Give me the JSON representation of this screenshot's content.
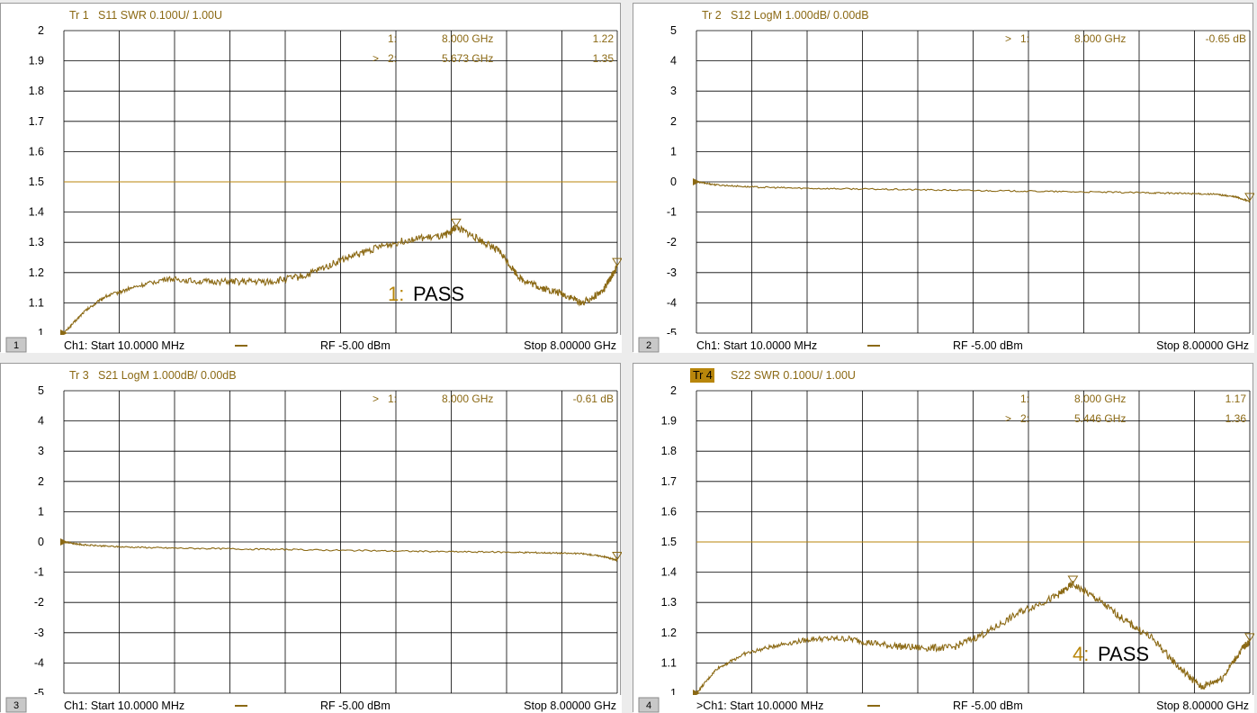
{
  "colors": {
    "trace": "#8B6914",
    "limit": "#B8860B",
    "active_tab": "#B8860B",
    "grid": "#000000"
  },
  "chart_data": [
    {
      "type": "line",
      "channel_number": "1",
      "trace_label": "Tr 1",
      "trace_title": "S11 SWR 0.100U/  1.00U",
      "trace_active": false,
      "yticks": [
        "2",
        "1.9",
        "1.8",
        "1.7",
        "1.6",
        "1.5",
        "1.4",
        "1.3",
        "1.2",
        "1.1",
        "1"
      ],
      "ylim": [
        1.0,
        2.0
      ],
      "xlim": [
        0.01,
        8.0
      ],
      "x_unit": "GHz",
      "limit_line": 1.5,
      "markers": [
        {
          "prefix": "",
          "number": "1:",
          "freq": "8.000  GHz",
          "value": "1.22",
          "x": 8.0,
          "y": 1.22
        },
        {
          "prefix": ">",
          "number": "2:",
          "freq": "5.673  GHz",
          "value": "1.35",
          "x": 5.673,
          "y": 1.35
        }
      ],
      "series": [
        {
          "x": [
            0.01,
            0.3,
            0.6,
            1.0,
            1.5,
            2.0,
            2.5,
            3.0,
            3.5,
            4.0,
            4.5,
            5.0,
            5.5,
            5.673,
            6.0,
            6.3,
            6.6,
            6.9,
            7.2,
            7.5,
            7.8,
            8.0
          ],
          "y": [
            1.0,
            1.07,
            1.12,
            1.15,
            1.18,
            1.17,
            1.17,
            1.17,
            1.19,
            1.24,
            1.28,
            1.31,
            1.32,
            1.35,
            1.31,
            1.27,
            1.18,
            1.15,
            1.13,
            1.1,
            1.14,
            1.22
          ]
        }
      ],
      "pass_num": "1:",
      "pass_word": "PASS",
      "footer": {
        "start": "Ch1:  Start  10.0000 MHz",
        "power": "RF  -5.00 dBm",
        "stop": "Stop  8.00000 GHz"
      }
    },
    {
      "type": "line",
      "channel_number": "2",
      "trace_label": "Tr 2",
      "trace_title": "S12 LogM 1.000dB/  0.00dB",
      "trace_active": false,
      "yticks": [
        "5",
        "4",
        "3",
        "2",
        "1",
        "0",
        "-1",
        "-2",
        "-3",
        "-4",
        "-5"
      ],
      "ylim": [
        -5,
        5
      ],
      "xlim": [
        0.01,
        8.0
      ],
      "x_unit": "GHz",
      "markers": [
        {
          "prefix": ">",
          "number": "1:",
          "freq": "8.000  GHz",
          "value": "-0.65 dB",
          "x": 8.0,
          "y": -0.65
        }
      ],
      "series": [
        {
          "x": [
            0.01,
            0.3,
            0.8,
            1.5,
            2.5,
            3.5,
            4.5,
            5.5,
            6.5,
            7.0,
            7.5,
            7.8,
            8.0
          ],
          "y": [
            0.0,
            -0.1,
            -0.17,
            -0.21,
            -0.24,
            -0.27,
            -0.3,
            -0.33,
            -0.36,
            -0.38,
            -0.41,
            -0.5,
            -0.65
          ]
        }
      ],
      "footer": {
        "start": "Ch1:  Start  10.0000 MHz",
        "power": "RF  -5.00 dBm",
        "stop": "Stop  8.00000 GHz"
      }
    },
    {
      "type": "line",
      "channel_number": "3",
      "trace_label": "Tr 3",
      "trace_title": "S21 LogM 1.000dB/  0.00dB",
      "trace_active": false,
      "yticks": [
        "5",
        "4",
        "3",
        "2",
        "1",
        "0",
        "-1",
        "-2",
        "-3",
        "-4",
        "-5"
      ],
      "ylim": [
        -5,
        5
      ],
      "xlim": [
        0.01,
        8.0
      ],
      "x_unit": "GHz",
      "markers": [
        {
          "prefix": ">",
          "number": "1:",
          "freq": "8.000  GHz",
          "value": "-0.61 dB",
          "x": 8.0,
          "y": -0.61
        }
      ],
      "series": [
        {
          "x": [
            0.01,
            0.3,
            0.8,
            1.5,
            2.5,
            3.5,
            4.5,
            5.5,
            6.5,
            7.0,
            7.5,
            7.8,
            8.0
          ],
          "y": [
            0.0,
            -0.1,
            -0.16,
            -0.2,
            -0.23,
            -0.26,
            -0.29,
            -0.32,
            -0.34,
            -0.36,
            -0.39,
            -0.48,
            -0.61
          ]
        }
      ],
      "footer": {
        "start": "Ch1:  Start  10.0000 MHz",
        "power": "RF  -5.00 dBm",
        "stop": "Stop  8.00000 GHz"
      }
    },
    {
      "type": "line",
      "channel_number": "4",
      "trace_label": "Tr 4",
      "trace_title": "S22 SWR 0.100U/  1.00U",
      "trace_active": true,
      "yticks": [
        "2",
        "1.9",
        "1.8",
        "1.7",
        "1.6",
        "1.5",
        "1.4",
        "1.3",
        "1.2",
        "1.1",
        "1"
      ],
      "ylim": [
        1.0,
        2.0
      ],
      "xlim": [
        0.01,
        8.0
      ],
      "x_unit": "GHz",
      "limit_line": 1.5,
      "markers": [
        {
          "prefix": "",
          "number": "1:",
          "freq": "8.000  GHz",
          "value": "1.17",
          "x": 8.0,
          "y": 1.17
        },
        {
          "prefix": ">",
          "number": "2:",
          "freq": "5.446  GHz",
          "value": "1.36",
          "x": 5.446,
          "y": 1.36
        }
      ],
      "series": [
        {
          "x": [
            0.01,
            0.3,
            0.7,
            1.2,
            1.7,
            2.2,
            2.7,
            3.2,
            3.7,
            4.2,
            4.7,
            5.2,
            5.446,
            5.8,
            6.2,
            6.6,
            7.0,
            7.3,
            7.6,
            7.9,
            8.0
          ],
          "y": [
            1.0,
            1.08,
            1.13,
            1.16,
            1.18,
            1.18,
            1.16,
            1.15,
            1.15,
            1.2,
            1.27,
            1.32,
            1.36,
            1.31,
            1.24,
            1.18,
            1.08,
            1.02,
            1.05,
            1.15,
            1.17
          ]
        }
      ],
      "pass_num": "4:",
      "pass_word": "PASS",
      "footer": {
        "start": ">Ch1:  Start  10.0000 MHz",
        "power": "RF  -5.00 dBm",
        "stop": "Stop  8.00000 GHz"
      }
    }
  ]
}
